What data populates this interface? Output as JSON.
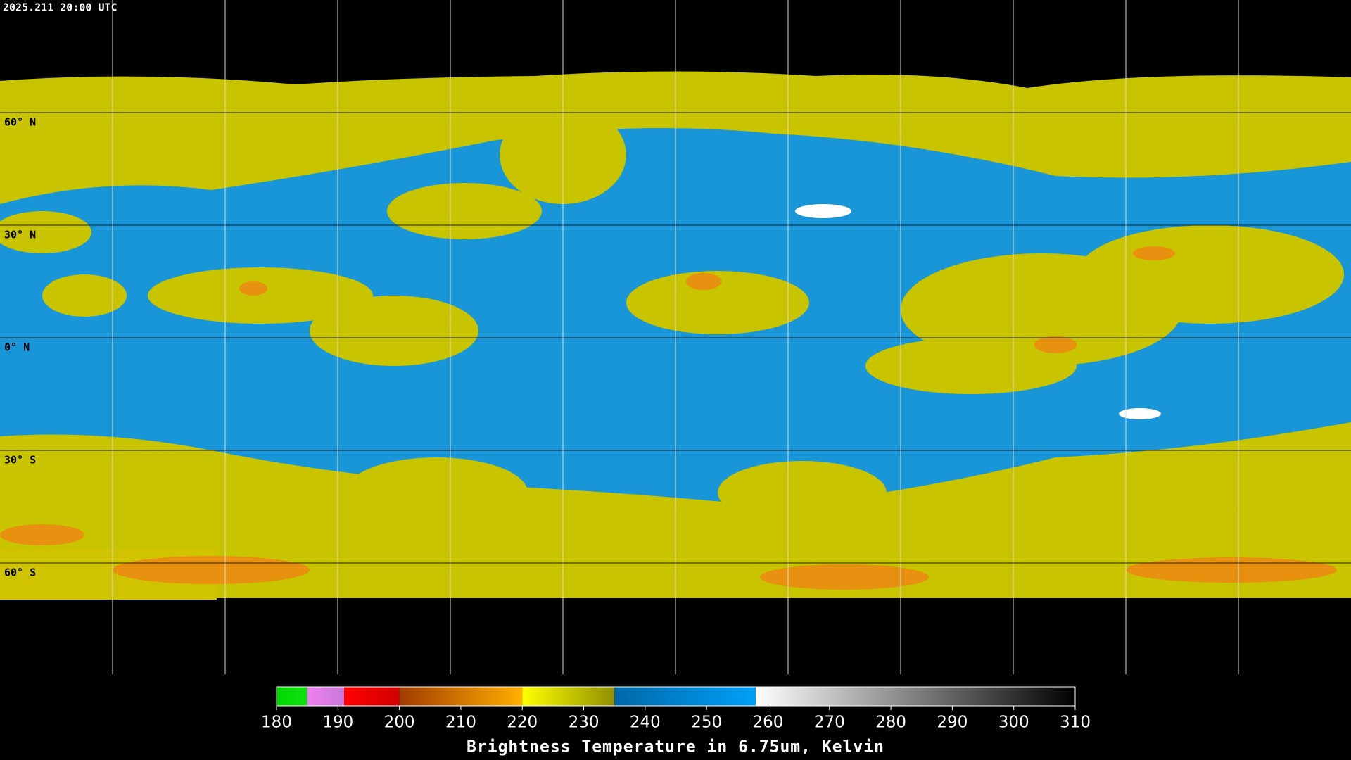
{
  "header": {
    "timestamp": "2025.211 20:00 UTC"
  },
  "map": {
    "latlim": [
      90,
      -90
    ],
    "parallels": [
      {
        "value": 60,
        "label": "60° N"
      },
      {
        "value": 30,
        "label": "30° N"
      },
      {
        "value": 0,
        "label": "0° N"
      },
      {
        "value": -30,
        "label": "30° S"
      },
      {
        "value": -60,
        "label": "60° S"
      }
    ]
  },
  "colorbar": {
    "lim": [
      180,
      310
    ],
    "ticks": [
      180,
      190,
      200,
      210,
      220,
      230,
      240,
      250,
      260,
      270,
      280,
      290,
      300,
      310
    ],
    "label": "Brightness Temperature in 6.75um, Kelvin",
    "segments": [
      {
        "from": 180,
        "to": 185,
        "colors": [
          "#00d800",
          "#10e010"
        ]
      },
      {
        "from": 185,
        "to": 191,
        "colors": [
          "#f080f0",
          "#c878d8"
        ]
      },
      {
        "from": 191,
        "to": 200,
        "colors": [
          "#ff0000",
          "#d00000"
        ]
      },
      {
        "from": 200,
        "to": 220,
        "colors": [
          "#a03c00",
          "#ffb000"
        ]
      },
      {
        "from": 220,
        "to": 235,
        "colors": [
          "#ffff00",
          "#909000"
        ]
      },
      {
        "from": 235,
        "to": 258,
        "colors": [
          "#0068a8",
          "#00a0f8"
        ]
      },
      {
        "from": 258,
        "to": 310,
        "colors": [
          "#ffffff",
          "#000000"
        ]
      }
    ]
  }
}
